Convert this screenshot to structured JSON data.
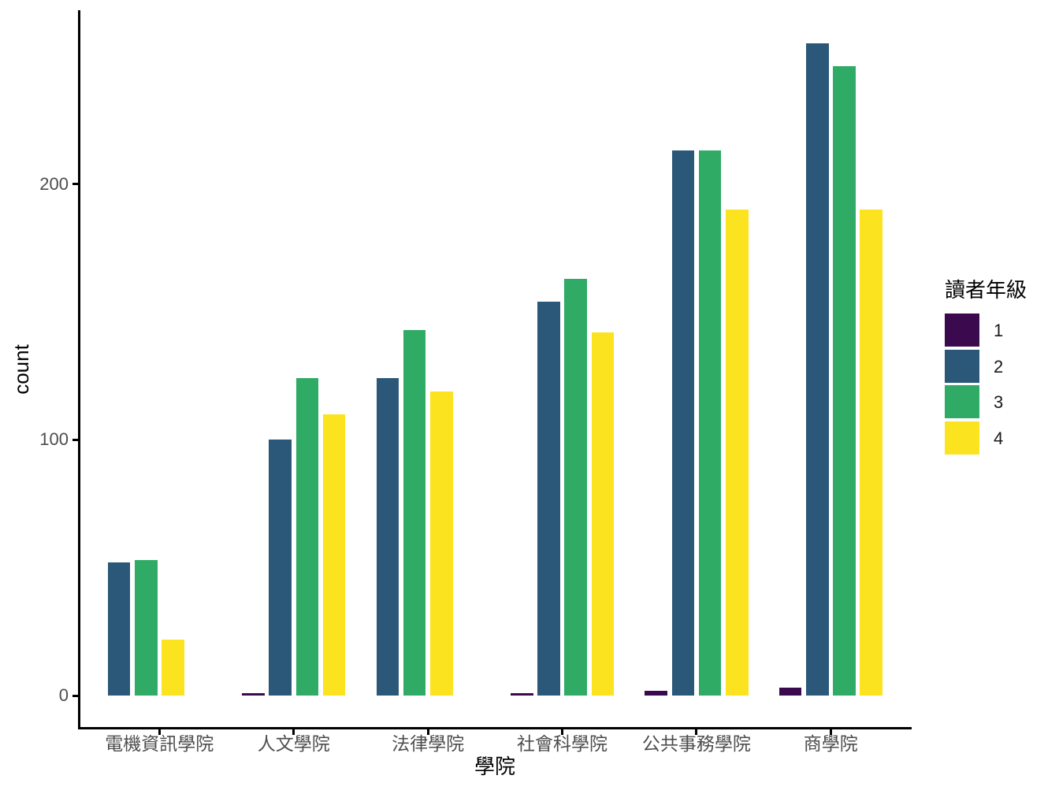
{
  "chart_data": {
    "type": "bar",
    "title": "",
    "xlabel": "學院",
    "ylabel": "count",
    "grid": false,
    "background": "#ffffff",
    "legend": {
      "title": "讀者年級",
      "position": "right"
    },
    "categories": [
      "電機資訊學院",
      "人文學院",
      "法律學院",
      "社會科學院",
      "公共事務學院",
      "商學院"
    ],
    "series": [
      {
        "name": "1",
        "color": "#3B0A4E",
        "values": [
          null,
          1,
          null,
          1,
          2,
          3
        ]
      },
      {
        "name": "2",
        "color": "#2B5879",
        "values": [
          52,
          100,
          124,
          154,
          213,
          255
        ]
      },
      {
        "name": "3",
        "color": "#30AB66",
        "values": [
          53,
          124,
          143,
          163,
          213,
          246
        ]
      },
      {
        "name": "4",
        "color": "#FBE31F",
        "values": [
          22,
          110,
          119,
          142,
          190,
          190
        ]
      }
    ],
    "yticks": [
      0,
      100,
      200
    ],
    "ylim": [
      -12.75,
      268
    ],
    "bar_layout": "dodged; groups missing a series pack remaining bars to the left slots",
    "axis_text_color": "#4d4d4d",
    "axis_line_color": "#000000"
  }
}
